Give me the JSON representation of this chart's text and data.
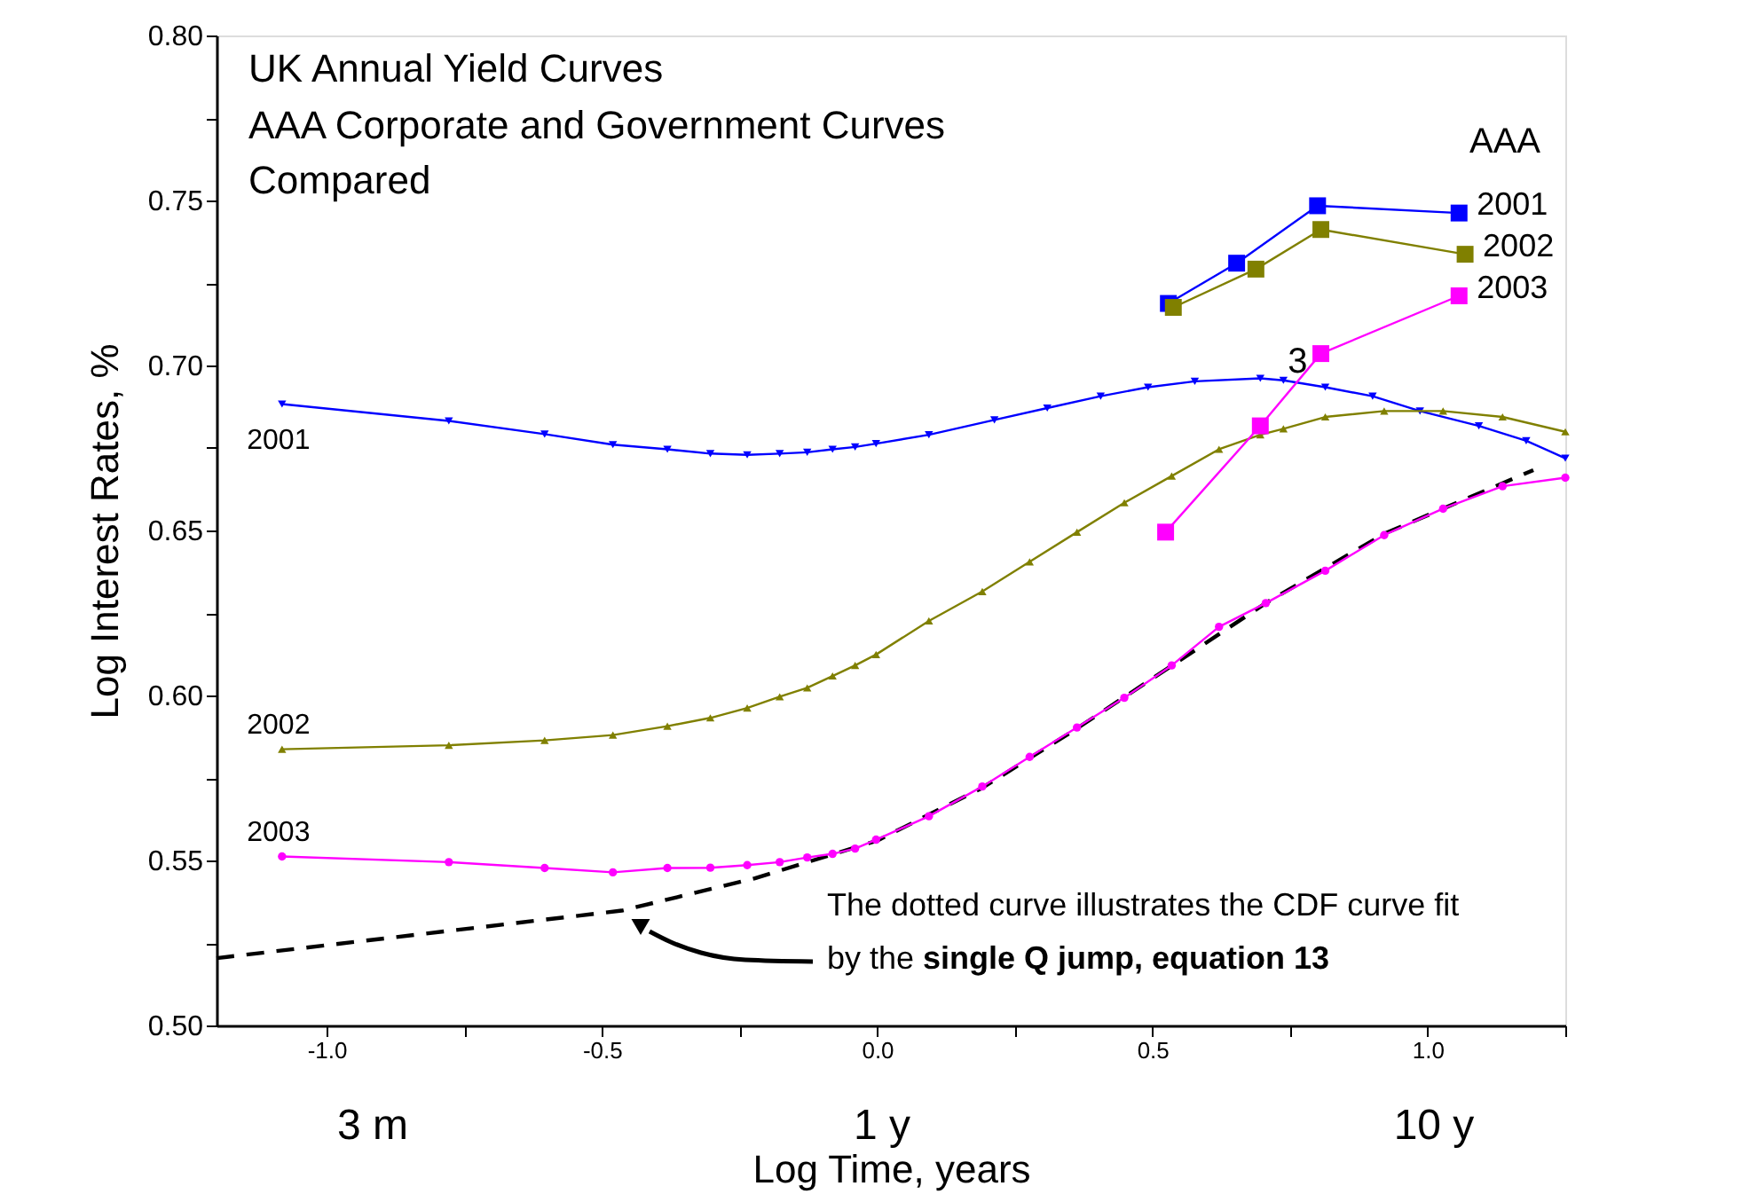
{
  "chart_data": {
    "type": "line",
    "title": "UK Annual Yield Curves",
    "subtitle": "AAA Corporate and Government Curves\nCompared",
    "xlabel": "Log Time, years",
    "ylabel": "Log Interest Rates, %",
    "xlim": [
      -1.2,
      1.25
    ],
    "ylim": [
      0.5,
      0.8
    ],
    "xticks": [
      {
        "value": -1,
        "label": "-1.0"
      },
      {
        "value": -0.75,
        "label": null
      },
      {
        "value": -0.5,
        "label": "-0.5"
      },
      {
        "value": -0.25,
        "label": null
      },
      {
        "value": 0,
        "label": "0.0"
      },
      {
        "value": 0.25,
        "label": null
      },
      {
        "value": 0.5,
        "label": "0.5"
      },
      {
        "value": 0.75,
        "label": null
      },
      {
        "value": 1,
        "label": "1.0"
      },
      {
        "value": 1.25,
        "label": null
      }
    ],
    "yticks": [
      {
        "value": 0.5,
        "label": "0.50"
      },
      {
        "value": 0.525,
        "label": null
      },
      {
        "value": 0.55,
        "label": "0.55"
      },
      {
        "value": 0.575,
        "label": null
      },
      {
        "value": 0.6,
        "label": "0.60"
      },
      {
        "value": 0.625,
        "label": null
      },
      {
        "value": 0.65,
        "label": "0.65"
      },
      {
        "value": 0.675,
        "label": null
      },
      {
        "value": 0.7,
        "label": "0.70"
      },
      {
        "value": 0.725,
        "label": null
      },
      {
        "value": 0.75,
        "label": "0.75"
      },
      {
        "value": 0.775,
        "label": null
      },
      {
        "value": 0.8,
        "label": "0.80"
      }
    ],
    "grid": false,
    "series": [
      {
        "name": "2001",
        "color": "#0000ff",
        "marker": "triangle",
        "x": [
          -1.081,
          -0.778,
          -0.604,
          -0.48,
          -0.381,
          -0.303,
          -0.236,
          -0.177,
          -0.127,
          -0.081,
          -0.04,
          -0.002,
          0.094,
          0.213,
          0.309,
          0.406,
          0.492,
          0.577,
          0.696,
          0.738,
          0.814,
          0.9,
          0.986,
          1.093,
          1.179,
          1.25
        ],
        "values": [
          0.6883,
          0.6832,
          0.6792,
          0.676,
          0.6746,
          0.6733,
          0.6729,
          0.6733,
          0.6737,
          0.6746,
          0.6753,
          0.6763,
          0.679,
          0.6835,
          0.6871,
          0.6907,
          0.6934,
          0.6952,
          0.6961,
          0.6955,
          0.6934,
          0.6907,
          0.6862,
          0.6817,
          0.6772,
          0.6719
        ]
      },
      {
        "name": "2002",
        "color": "#808000",
        "marker": "triangle",
        "x": [
          -1.081,
          -0.778,
          -0.604,
          -0.48,
          -0.381,
          -0.303,
          -0.236,
          -0.177,
          -0.127,
          -0.081,
          -0.04,
          -0.002,
          0.094,
          0.191,
          0.277,
          0.363,
          0.449,
          0.535,
          0.621,
          0.696,
          0.738,
          0.814,
          0.921,
          1.028,
          1.136,
          1.25
        ],
        "values": [
          0.5837,
          0.5849,
          0.5864,
          0.588,
          0.5907,
          0.5932,
          0.5962,
          0.5996,
          0.6023,
          0.6059,
          0.6091,
          0.6124,
          0.6226,
          0.6315,
          0.6405,
          0.6495,
          0.6584,
          0.6665,
          0.6746,
          0.679,
          0.6808,
          0.6844,
          0.6862,
          0.6862,
          0.6844,
          0.6799
        ]
      },
      {
        "type": "line",
        "color": "#000000",
        "marker": "none",
        "line_style": "dashed",
        "x": [
          -1.2,
          -0.464,
          -0.222,
          0.0,
          0.191,
          0.363,
          0.535,
          0.706,
          0.921,
          1.192
        ],
        "values": [
          0.5204,
          0.5348,
          0.5446,
          0.556,
          0.572,
          0.59,
          0.609,
          0.628,
          0.649,
          0.6683
        ]
      },
      {
        "name": "2003",
        "color": "#ff00ff",
        "marker": "circle",
        "x": [
          -1.081,
          -0.778,
          -0.604,
          -0.48,
          -0.381,
          -0.303,
          -0.236,
          -0.177,
          -0.127,
          -0.081,
          -0.04,
          -0.002,
          0.094,
          0.191,
          0.277,
          0.363,
          0.449,
          0.535,
          0.621,
          0.706,
          0.814,
          0.921,
          1.028,
          1.136,
          1.25
        ],
        "values": [
          0.5512,
          0.5495,
          0.5477,
          0.5464,
          0.5477,
          0.5478,
          0.5486,
          0.5495,
          0.5509,
          0.552,
          0.5536,
          0.5563,
          0.5634,
          0.5724,
          0.5814,
          0.5903,
          0.5993,
          0.6091,
          0.6208,
          0.628,
          0.6378,
          0.6486,
          0.6566,
          0.6634,
          0.666
        ]
      },
      {
        "name": "2001",
        "color": "#0000ff",
        "marker": "square",
        "x": [
          0.529,
          0.653,
          0.8,
          1.057
        ],
        "values": [
          0.7188,
          0.731,
          0.7484,
          0.7462
        ]
      },
      {
        "name": "2002",
        "color": "#808000",
        "marker": "square",
        "x": [
          0.538,
          0.688,
          0.806,
          1.068
        ],
        "values": [
          0.7176,
          0.7292,
          0.7412,
          0.7337
        ]
      },
      {
        "name": "2003",
        "color": "#ff00ff",
        "marker": "square",
        "x": [
          0.524,
          0.696,
          0.806,
          1.057
        ],
        "values": [
          0.6495,
          0.6817,
          0.7036,
          0.7211
        ]
      }
    ],
    "annotations": [
      "AAA",
      "3 m",
      "1 y",
      "10 y",
      {
        "text": "3",
        "x": 0.783,
        "y": 0.6989
      },
      "The dotted curve illustrates the CDF curve fit",
      "by the",
      "single Q jump, equation 13"
    ]
  }
}
